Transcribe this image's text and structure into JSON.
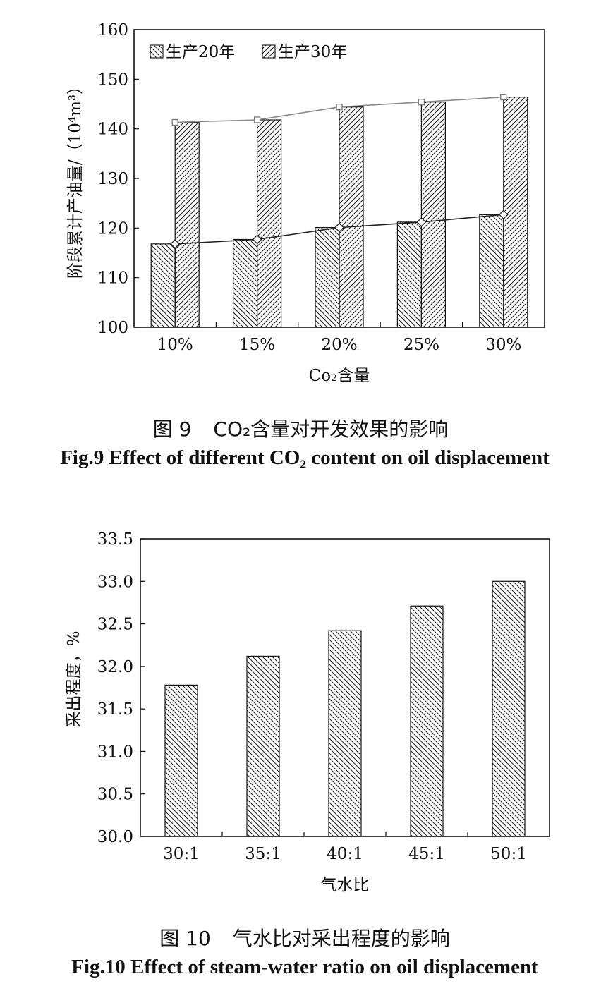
{
  "figures": [
    {
      "caption_cn_prefix": "图 9",
      "caption_cn_text": "CO₂含量对开发效果的影响",
      "caption_en": "Fig.9 Effect of different CO₂ content on oil displacement"
    },
    {
      "caption_cn_prefix": "图 10",
      "caption_cn_text": "气水比对采出程度的影响",
      "caption_en": "Fig.10 Effect of steam-water ratio on oil displacement"
    }
  ],
  "chart_data": [
    {
      "type": "bar",
      "title": "",
      "xlabel": "Co₂含量",
      "ylabel": "阶段累计产油量/（10⁴m³）",
      "categories": [
        "10%",
        "15%",
        "20%",
        "25%",
        "30%"
      ],
      "ylim": [
        100,
        160
      ],
      "yticks": [
        100,
        110,
        120,
        130,
        140,
        150,
        160
      ],
      "legend_position": "top-left",
      "grid": false,
      "series": [
        {
          "name": "生产20年",
          "values": [
            116.8,
            117.7,
            120.1,
            121.2,
            122.7
          ],
          "pattern": "backslash-hatch",
          "line_marker": "diamond",
          "line_color": "#222222"
        },
        {
          "name": "生产30年",
          "values": [
            141.3,
            141.8,
            144.4,
            145.4,
            146.4
          ],
          "pattern": "slash-hatch",
          "line_marker": "square",
          "line_color": "#8a8a8a"
        }
      ]
    },
    {
      "type": "bar",
      "title": "",
      "xlabel": "气水比",
      "ylabel": "采出程度，%",
      "categories": [
        "30:1",
        "35:1",
        "40:1",
        "45:1",
        "50:1"
      ],
      "ylim": [
        30.0,
        33.5
      ],
      "yticks": [
        "30.0",
        "30.5",
        "31.0",
        "31.5",
        "32.0",
        "32.5",
        "33.0",
        "33.5"
      ],
      "grid": false,
      "series": [
        {
          "values": [
            31.78,
            32.12,
            32.42,
            32.71,
            33.0
          ],
          "pattern": "backslash-hatch"
        }
      ]
    }
  ]
}
